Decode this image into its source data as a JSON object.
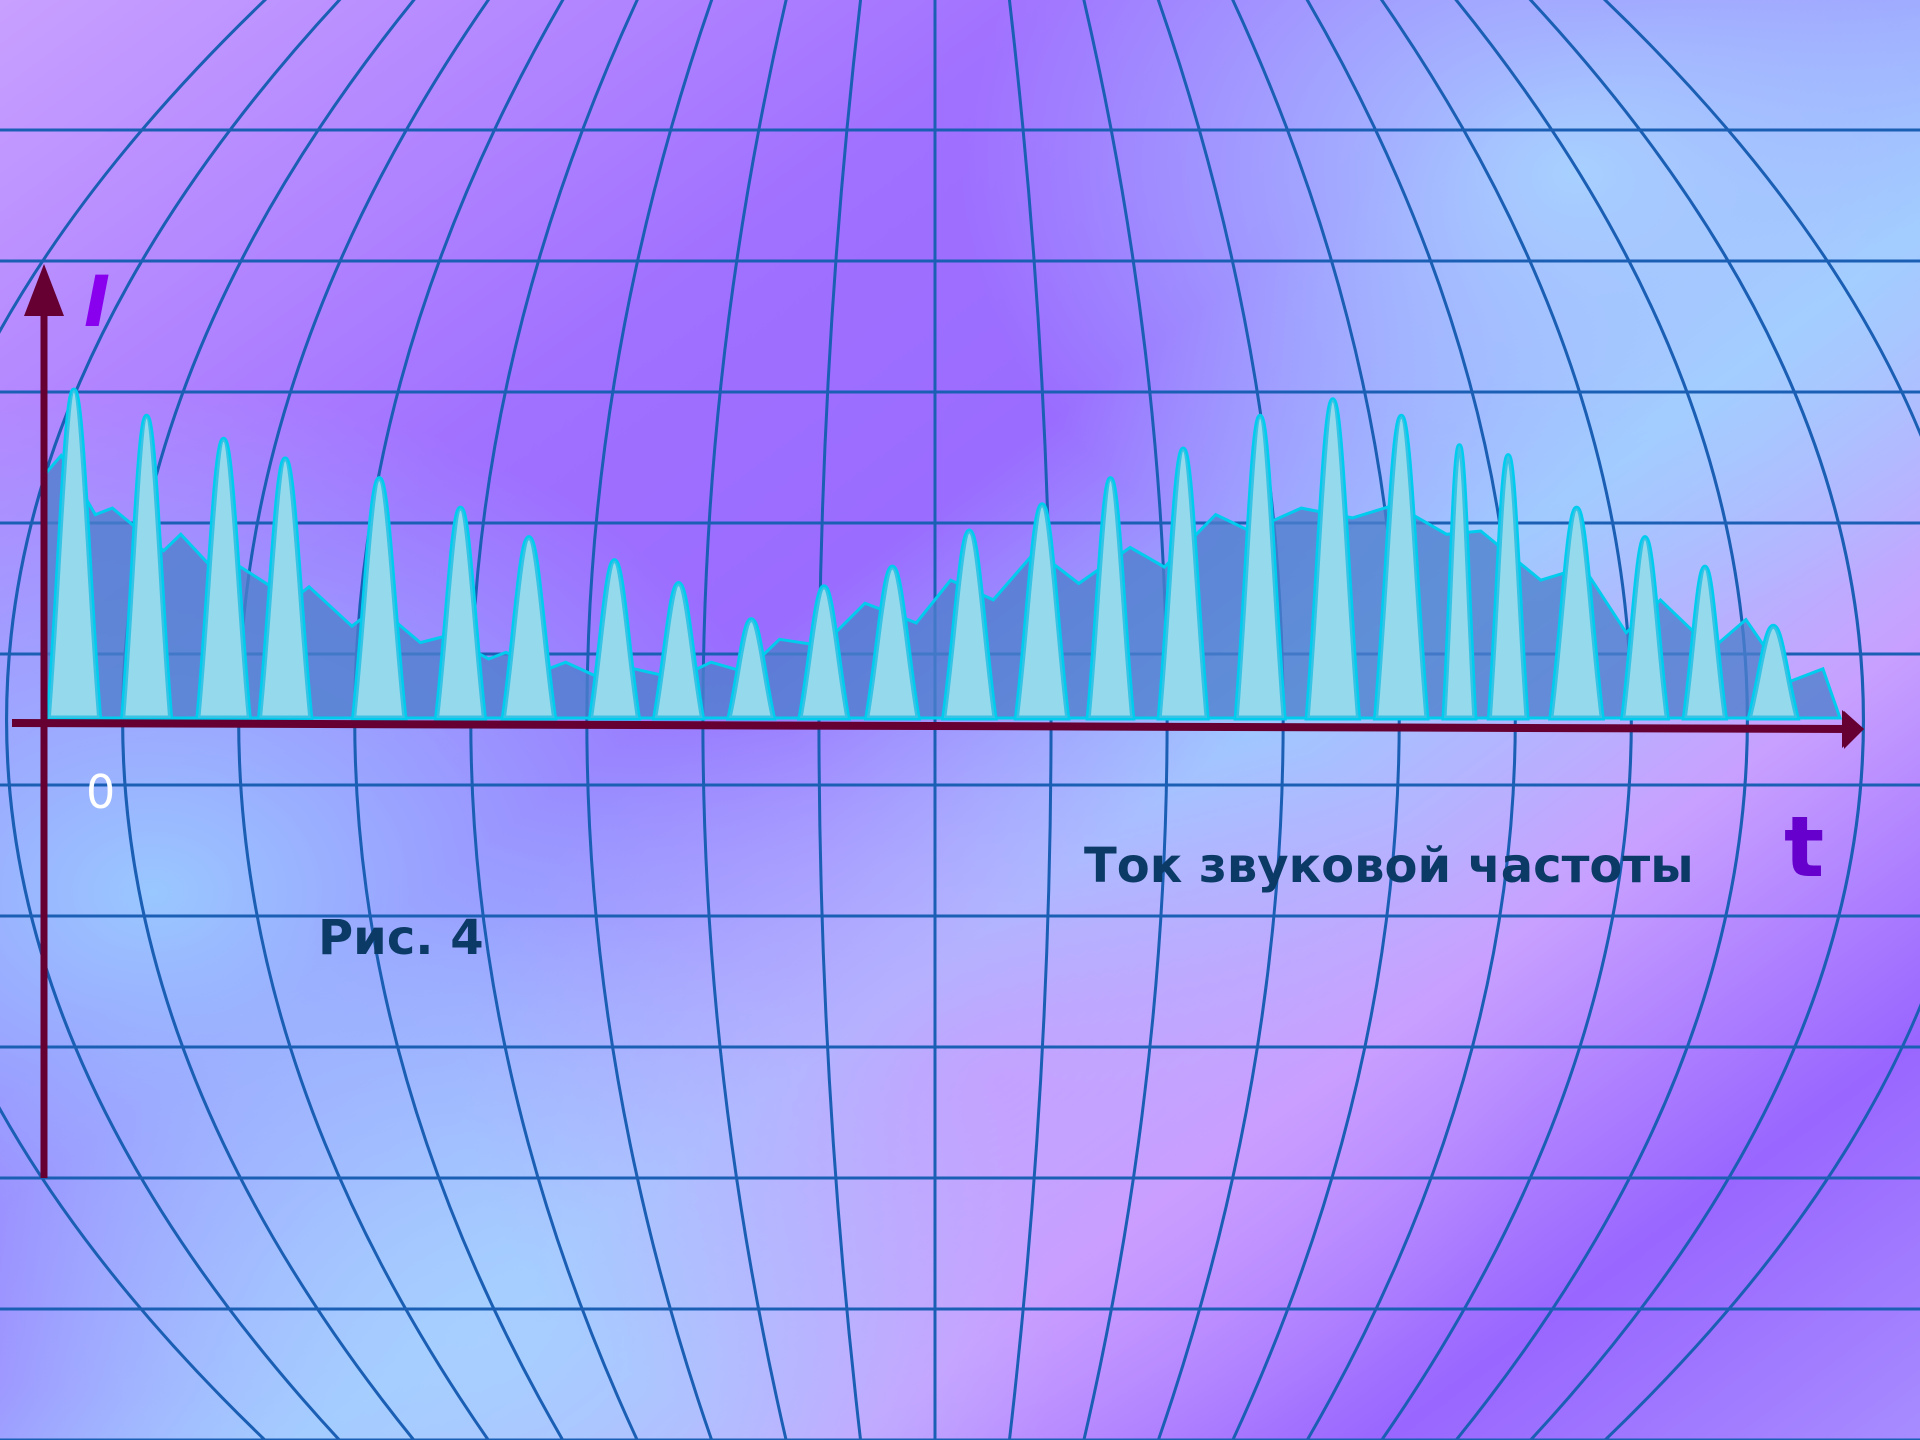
{
  "figure": {
    "y_axis_label": "I",
    "x_axis_label": "t",
    "origin_label": "0",
    "caption": "Рис. 4",
    "subtitle": "Ток звуковой частоты"
  },
  "colors": {
    "bg_violet": "#9966ff",
    "bg_light_blue": "#99ccff",
    "bg_pink": "#cc99ff",
    "bg_pale": "#c8c8ff",
    "grid": "#1a5fb4",
    "axis": "#660033",
    "spike_stroke": "#00ccee",
    "spike_fill": "#ccffff",
    "envelope_fill": "#4d7fcc",
    "text_dark": "#0b3a66",
    "label_purple": "#8800ee",
    "t_label": "#6600cc"
  },
  "chart_data": {
    "type": "area",
    "description_series": "spikes",
    "envelope": [
      [
        0.0,
        0.74
      ],
      [
        0.02,
        0.8
      ],
      [
        0.06,
        0.62
      ],
      [
        0.08,
        0.64
      ],
      [
        0.14,
        0.51
      ],
      [
        0.16,
        0.56
      ],
      [
        0.21,
        0.42
      ],
      [
        0.23,
        0.46
      ],
      [
        0.29,
        0.36
      ],
      [
        0.31,
        0.4
      ],
      [
        0.36,
        0.28
      ],
      [
        0.39,
        0.34
      ],
      [
        0.44,
        0.23
      ],
      [
        0.47,
        0.25
      ],
      [
        0.52,
        0.18
      ],
      [
        0.54,
        0.2
      ],
      [
        0.59,
        0.15
      ],
      [
        0.61,
        0.17
      ],
      [
        0.66,
        0.11
      ],
      [
        0.69,
        0.15
      ],
      [
        0.74,
        0.12
      ],
      [
        0.78,
        0.17
      ],
      [
        0.82,
        0.14
      ],
      [
        0.86,
        0.24
      ],
      [
        0.91,
        0.22
      ],
      [
        0.96,
        0.35
      ],
      [
        1.02,
        0.29
      ],
      [
        1.06,
        0.42
      ],
      [
        1.11,
        0.36
      ],
      [
        1.16,
        0.51
      ],
      [
        1.21,
        0.41
      ],
      [
        1.27,
        0.52
      ],
      [
        1.31,
        0.46
      ],
      [
        1.37,
        0.62
      ],
      [
        1.41,
        0.57
      ],
      [
        1.47,
        0.64
      ],
      [
        1.53,
        0.61
      ],
      [
        1.58,
        0.65
      ],
      [
        1.64,
        0.56
      ],
      [
        1.68,
        0.57
      ],
      [
        1.75,
        0.42
      ],
      [
        1.8,
        0.46
      ],
      [
        1.85,
        0.26
      ],
      [
        1.89,
        0.36
      ],
      [
        1.95,
        0.21
      ],
      [
        1.99,
        0.3
      ],
      [
        2.04,
        0.11
      ],
      [
        2.08,
        0.15
      ],
      [
        2.1,
        0.0
      ]
    ],
    "spikes": [
      {
        "t": 0.035,
        "w": 0.03,
        "h": 1.0
      },
      {
        "t": 0.12,
        "w": 0.028,
        "h": 0.92
      },
      {
        "t": 0.21,
        "w": 0.03,
        "h": 0.85
      },
      {
        "t": 0.282,
        "w": 0.03,
        "h": 0.79
      },
      {
        "t": 0.392,
        "w": 0.03,
        "h": 0.73
      },
      {
        "t": 0.487,
        "w": 0.028,
        "h": 0.64
      },
      {
        "t": 0.567,
        "w": 0.03,
        "h": 0.55
      },
      {
        "t": 0.667,
        "w": 0.028,
        "h": 0.48
      },
      {
        "t": 0.742,
        "w": 0.028,
        "h": 0.41
      },
      {
        "t": 0.827,
        "w": 0.026,
        "h": 0.3
      },
      {
        "t": 0.912,
        "w": 0.028,
        "h": 0.4
      },
      {
        "t": 0.992,
        "w": 0.03,
        "h": 0.46
      },
      {
        "t": 1.082,
        "w": 0.03,
        "h": 0.57
      },
      {
        "t": 1.167,
        "w": 0.03,
        "h": 0.65
      },
      {
        "t": 1.247,
        "w": 0.026,
        "h": 0.73
      },
      {
        "t": 1.332,
        "w": 0.028,
        "h": 0.82
      },
      {
        "t": 1.422,
        "w": 0.028,
        "h": 0.92
      },
      {
        "t": 1.507,
        "w": 0.03,
        "h": 0.97
      },
      {
        "t": 1.587,
        "w": 0.03,
        "h": 0.92
      },
      {
        "t": 1.655,
        "w": 0.018,
        "h": 0.83
      },
      {
        "t": 1.712,
        "w": 0.022,
        "h": 0.8
      },
      {
        "t": 1.792,
        "w": 0.03,
        "h": 0.64
      },
      {
        "t": 1.872,
        "w": 0.026,
        "h": 0.55
      },
      {
        "t": 1.942,
        "w": 0.024,
        "h": 0.46
      },
      {
        "t": 2.022,
        "w": 0.028,
        "h": 0.28
      }
    ],
    "xlim": [
      0,
      2.1
    ],
    "ylim": [
      0,
      1.0
    ]
  }
}
